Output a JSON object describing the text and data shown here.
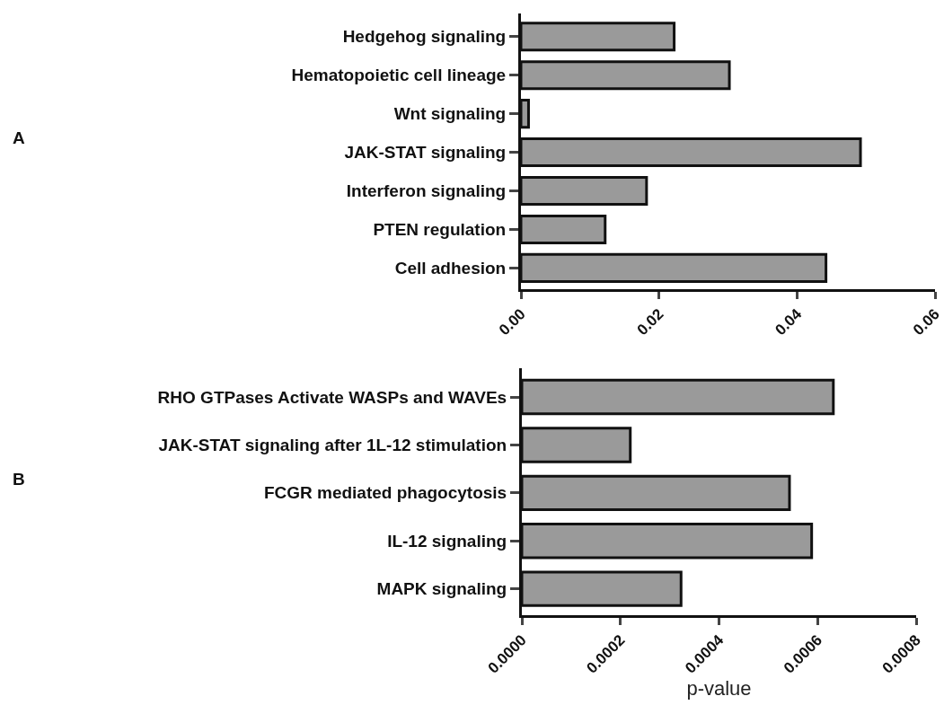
{
  "chart_data": [
    {
      "type": "bar",
      "orientation": "horizontal",
      "annotations": [
        "A"
      ],
      "categories": [
        "Hedgehog signaling",
        "Hematopoietic cell lineage",
        "Wnt signaling",
        "JAK-STAT signaling",
        "Interferon signaling",
        "PTEN regulation",
        "Cell adhesion"
      ],
      "values": [
        0.0222,
        0.0302,
        0.0011,
        0.0492,
        0.0182,
        0.0122,
        0.0442
      ],
      "color": "#9a9a9a",
      "xlim": [
        0,
        0.06
      ],
      "xticks": [
        {
          "value": 0,
          "label": "0.00"
        },
        0.02,
        0.04,
        0.06
      ],
      "grid": false
    },
    {
      "type": "bar",
      "orientation": "horizontal",
      "annotations": [
        "B"
      ],
      "xlabel": "p-value",
      "categories": [
        "RHO GTPases Activate WASPs and WAVEs",
        "JAK-STAT signaling after 1L-12 stimulation",
        "FCGR mediated phagocytosis",
        "IL-12 signaling",
        "MAPK signaling"
      ],
      "values": [
        0.000632,
        0.00022,
        0.000543,
        0.000588,
        0.000323
      ],
      "color": "#9a9a9a",
      "xlim": [
        0,
        0.0008
      ],
      "xticks": [
        {
          "value": 0,
          "label": "0.0000"
        },
        0.0002,
        0.0004,
        0.0006,
        0.0008
      ],
      "grid": false
    }
  ]
}
